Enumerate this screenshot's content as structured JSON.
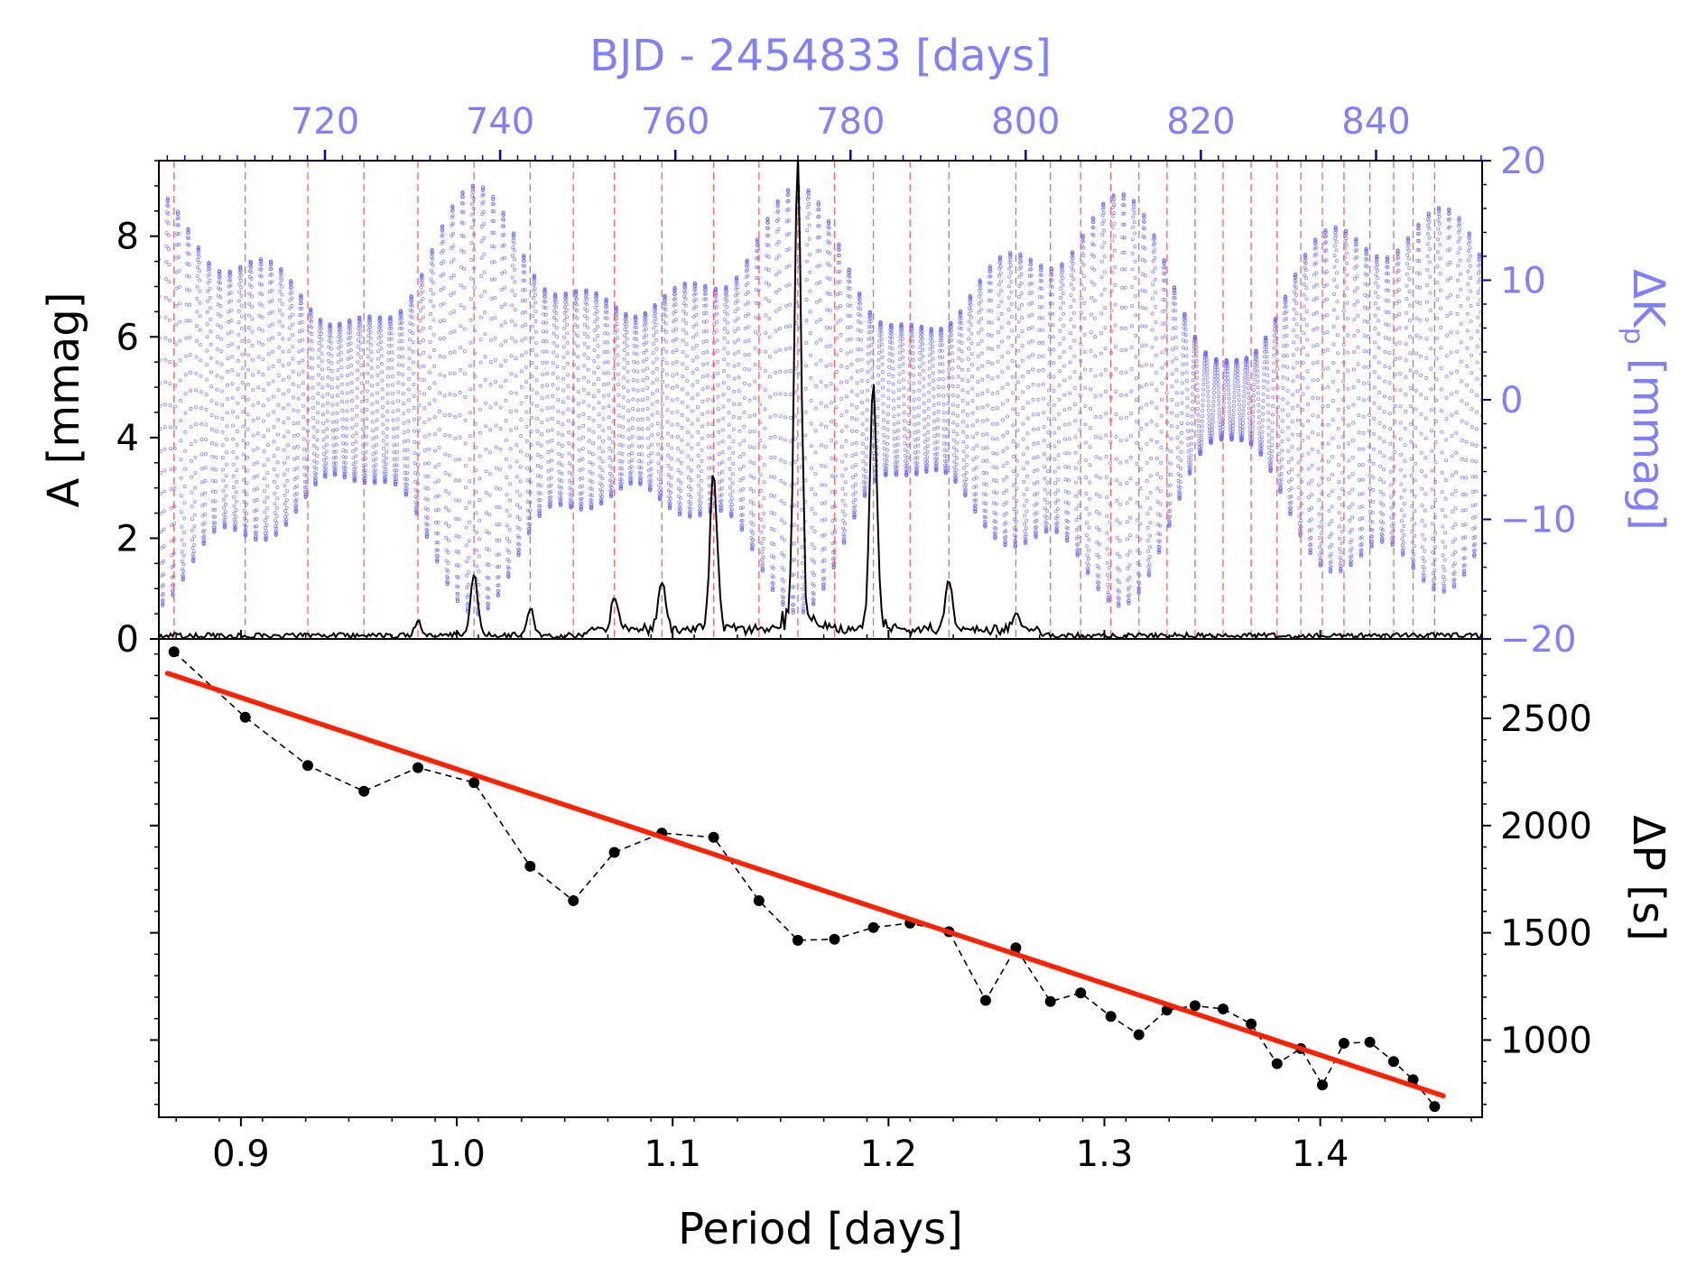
{
  "chart_data": [
    {
      "type": "line",
      "panel": "top",
      "xlabel": "",
      "x_ticks": [
        0.9,
        1.0,
        1.1,
        1.2,
        1.3,
        1.4
      ],
      "xlim": [
        0.862,
        1.475
      ],
      "ylabel": "A [mmag]",
      "ylim": [
        0,
        9.5
      ],
      "y_ticks": [
        0,
        2,
        4,
        6,
        8
      ],
      "periodogram": {
        "name": "amplitude spectrum",
        "color": "#000000",
        "noise_level": 0.08,
        "peaks": [
          {
            "period": 0.982,
            "amplitude": 0.25
          },
          {
            "period": 1.008,
            "amplitude": 1.15
          },
          {
            "period": 1.034,
            "amplitude": 0.5
          },
          {
            "period": 1.073,
            "amplitude": 0.6
          },
          {
            "period": 1.095,
            "amplitude": 0.95
          },
          {
            "period": 1.119,
            "amplitude": 3.0
          },
          {
            "period": 1.158,
            "amplitude": 9.05
          },
          {
            "period": 1.193,
            "amplitude": 4.6
          },
          {
            "period": 1.228,
            "amplitude": 1.0
          },
          {
            "period": 1.259,
            "amplitude": 0.35
          }
        ]
      },
      "mode_period_markers": [
        0.869,
        0.902,
        0.931,
        0.957,
        0.982,
        1.008,
        1.034,
        1.054,
        1.073,
        1.095,
        1.119,
        1.14,
        1.158,
        1.175,
        1.193,
        1.21,
        1.228,
        1.259,
        1.275,
        1.289,
        1.303,
        1.316,
        1.329,
        1.342,
        1.355,
        1.368,
        1.38,
        1.391,
        1.401,
        1.411,
        1.423,
        1.434,
        1.443,
        1.453
      ],
      "top_axis": {
        "label": "BJD - 2454833 [days]",
        "color": "#8080ff",
        "ticks": [
          720,
          740,
          760,
          780,
          800,
          820,
          840
        ],
        "range": [
          701.04,
          852.11
        ]
      },
      "right_axis": {
        "label": "ΔK",
        "label_sub": "p",
        "label_unit": " [mmag]",
        "color": "#8080ff",
        "ticks": [
          20,
          10,
          0,
          -10,
          -20
        ],
        "tick_labels": [
          "20",
          "10",
          "0",
          "−10",
          "−20"
        ],
        "range": [
          -20,
          20
        ]
      },
      "light_curve": {
        "name": "Kepler light curve",
        "color": "#6666ff",
        "cadence_days": 0.0204,
        "pulsation_period_days": 1.16,
        "envelope_centers_days": [
          723,
          746,
          758,
          782,
          792,
          807,
          825
        ],
        "envelope_amplitude_mmag": 15
      }
    },
    {
      "type": "line",
      "panel": "bottom",
      "xlabel": "Period [days]",
      "x_ticks": [
        0.9,
        1.0,
        1.1,
        1.2,
        1.3,
        1.4
      ],
      "x_tick_labels": [
        "0.9",
        "1.0",
        "1.1",
        "1.2",
        "1.3",
        "1.4"
      ],
      "xlim": [
        0.862,
        1.475
      ],
      "ylabel": "ΔP [s]",
      "ylim": [
        640,
        2870
      ],
      "y_ticks": [
        1000,
        1500,
        2000,
        2500
      ],
      "series": [
        {
          "name": "period spacings",
          "color": "#000000",
          "style": "dashed with points",
          "x": [
            0.869,
            0.902,
            0.931,
            0.957,
            0.982,
            1.008,
            1.034,
            1.054,
            1.073,
            1.095,
            1.119,
            1.14,
            1.158,
            1.175,
            1.193,
            1.21,
            1.228,
            1.245,
            1.259,
            1.275,
            1.289,
            1.303,
            1.316,
            1.329,
            1.342,
            1.355,
            1.368,
            1.38,
            1.391,
            1.401,
            1.411,
            1.423,
            1.434,
            1.443,
            1.453
          ],
          "y": [
            2810,
            2505,
            2280,
            2160,
            2270,
            2200,
            1810,
            1650,
            1875,
            1965,
            1945,
            1650,
            1465,
            1470,
            1525,
            1545,
            1505,
            1185,
            1430,
            1180,
            1220,
            1110,
            1025,
            1140,
            1160,
            1145,
            1075,
            890,
            960,
            790,
            985,
            990,
            900,
            815,
            690
          ]
        },
        {
          "name": "linear fit",
          "color": "#ff2200",
          "style": "solid",
          "x": [
            0.866,
            1.457
          ],
          "y": [
            2710,
            740
          ]
        }
      ]
    }
  ]
}
